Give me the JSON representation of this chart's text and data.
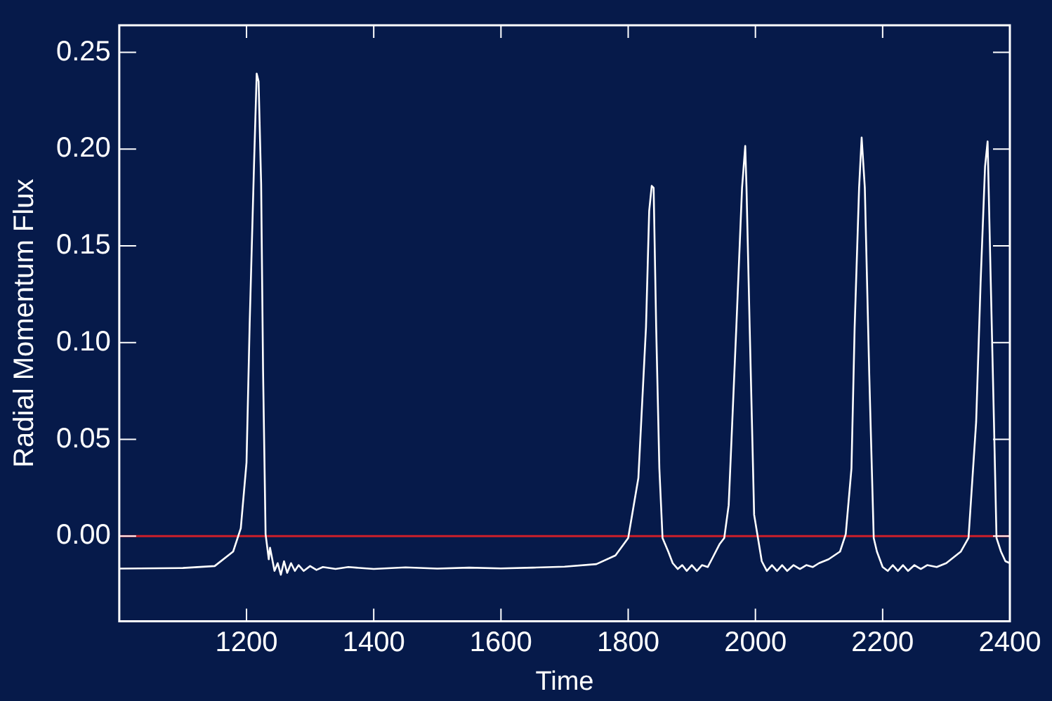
{
  "chart_data": {
    "type": "line",
    "xlabel": "Time",
    "ylabel": "Radial Momentum Flux",
    "xlim": [
      1000,
      2400
    ],
    "xticks": [
      1200,
      1400,
      1600,
      1800,
      2000,
      2200,
      2400
    ],
    "ylim": [
      -0.044,
      0.264
    ],
    "yticks": [
      {
        "value": 0,
        "label": "0.00"
      },
      {
        "value": 0.05,
        "label": "0.05"
      },
      {
        "value": 0.1,
        "label": "0.10"
      },
      {
        "value": 0.15,
        "label": "0.15"
      },
      {
        "value": 0.2,
        "label": "0.20"
      },
      {
        "value": 0.25,
        "label": "0.25"
      }
    ],
    "grid": false,
    "legend": false,
    "marker": "none",
    "line_style": "solid",
    "ref_lines": [
      {
        "axis": "y",
        "value": 0,
        "color": "#cc1f2a"
      }
    ],
    "series": [
      {
        "color": "#ffffff",
        "x": [
          1000,
          1100,
          1150,
          1179,
          1191,
          1200,
          1205,
          1212,
          1216,
          1219,
          1223,
          1226,
          1230,
          1235,
          1237,
          1244,
          1249,
          1254,
          1259,
          1264,
          1270,
          1276,
          1282,
          1290,
          1300,
          1310,
          1320,
          1340,
          1360,
          1400,
          1450,
          1500,
          1550,
          1600,
          1650,
          1700,
          1750,
          1780,
          1800,
          1816,
          1828,
          1833,
          1837,
          1840,
          1844,
          1849,
          1854,
          1863,
          1870,
          1878,
          1885,
          1892,
          1900,
          1908,
          1916,
          1925,
          1933,
          1944,
          1951,
          1958,
          1970,
          1979,
          1984,
          1986,
          1991,
          1998,
          2010,
          2018,
          2026,
          2034,
          2042,
          2050,
          2060,
          2070,
          2080,
          2090,
          2100,
          2115,
          2133,
          2142,
          2151,
          2156,
          2163,
          2167,
          2172,
          2179,
          2186,
          2191,
          2200,
          2208,
          2216,
          2224,
          2232,
          2240,
          2250,
          2260,
          2270,
          2285,
          2300,
          2323,
          2335,
          2347,
          2354,
          2361,
          2365,
          2370,
          2375,
          2379,
          2386,
          2393,
          2400
        ],
        "values": [
          -0.0168,
          -0.0165,
          -0.0155,
          -0.008,
          0.004,
          0.038,
          0.11,
          0.194,
          0.239,
          0.235,
          0.182,
          0.086,
          0.001,
          -0.012,
          -0.006,
          -0.018,
          -0.014,
          -0.02,
          -0.013,
          -0.019,
          -0.014,
          -0.018,
          -0.015,
          -0.018,
          -0.0155,
          -0.0175,
          -0.016,
          -0.017,
          -0.016,
          -0.017,
          -0.0162,
          -0.0168,
          -0.0163,
          -0.0167,
          -0.0163,
          -0.0158,
          -0.0145,
          -0.01,
          -0.001,
          0.03,
          0.108,
          0.168,
          0.181,
          0.18,
          0.108,
          0.035,
          -0.001,
          -0.008,
          -0.014,
          -0.017,
          -0.015,
          -0.018,
          -0.015,
          -0.018,
          -0.015,
          -0.016,
          -0.011,
          -0.004,
          -0.001,
          0.016,
          0.108,
          0.18,
          0.2016,
          0.18,
          0.108,
          0.011,
          -0.013,
          -0.018,
          -0.015,
          -0.018,
          -0.015,
          -0.018,
          -0.015,
          -0.017,
          -0.015,
          -0.016,
          -0.014,
          -0.012,
          -0.008,
          0.001,
          0.035,
          0.108,
          0.18,
          0.206,
          0.18,
          0.083,
          -0.001,
          -0.008,
          -0.016,
          -0.018,
          -0.015,
          -0.018,
          -0.015,
          -0.018,
          -0.015,
          -0.017,
          -0.015,
          -0.016,
          -0.014,
          -0.008,
          -0.001,
          0.059,
          0.131,
          0.191,
          0.204,
          0.131,
          0.059,
          -0.001,
          -0.008,
          -0.013,
          -0.014
        ]
      }
    ]
  }
}
